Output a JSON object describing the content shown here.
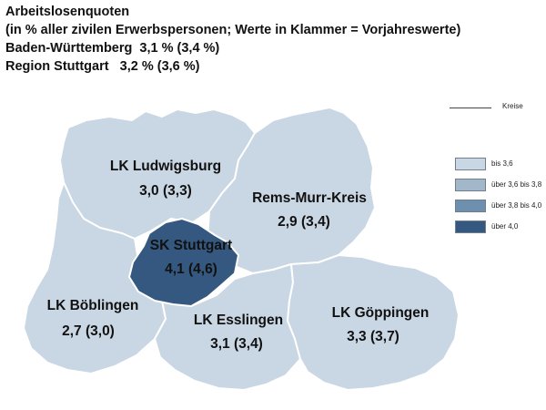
{
  "header": {
    "title": "Arbeitslosenquoten",
    "subtitle": "(in % aller zivilen Erwerbspersonen; Werte in Klammer = Vorjahreswerte)",
    "line_bw": "Baden-Württemberg  3,1 % (3,4 %)",
    "line_stuttgart": "Region Stuttgart   3,2 % (3,6 %)"
  },
  "legend": {
    "line_label": "Kreise",
    "items": [
      {
        "label": "bis 3,6",
        "color": "#c9d6e3"
      },
      {
        "label": "über 3,6 bis 3,8",
        "color": "#a3b7cb"
      },
      {
        "label": "über 3,8 bis 4,0",
        "color": "#6f8fae"
      },
      {
        "label": "über 4,0",
        "color": "#34587f"
      }
    ]
  },
  "regions": {
    "ludwigsburg": {
      "name": "LK Ludwigsburg",
      "value": "3,0 (3,3)",
      "color": "#c9d6e3"
    },
    "rems_murr": {
      "name": "Rems-Murr-Kreis",
      "value": "2,9 (3,4)",
      "color": "#c9d6e3"
    },
    "stuttgart": {
      "name": "SK Stuttgart",
      "value": "4,1 (4,6)",
      "color": "#34587f"
    },
    "boeblingen": {
      "name": "LK Böblingen",
      "value": "2,7 (3,0)",
      "color": "#c9d6e3"
    },
    "esslingen": {
      "name": "LK Esslingen",
      "value": "3,1 (3,4)",
      "color": "#c9d6e3"
    },
    "goeppingen": {
      "name": "LK Göppingen",
      "value": "3,3 (3,7)",
      "color": "#c9d6e3"
    }
  }
}
